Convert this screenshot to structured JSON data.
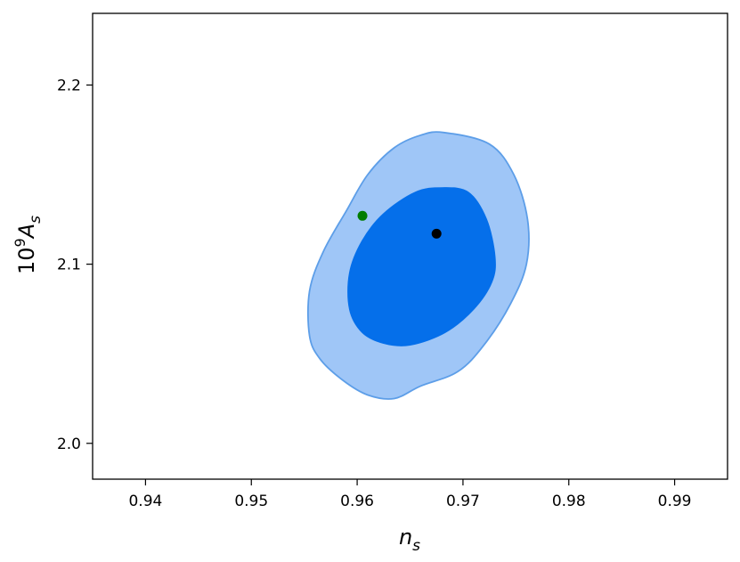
{
  "chart_data": {
    "type": "contour",
    "xlabel": {
      "base": "n",
      "sub": "s"
    },
    "ylabel": {
      "prefix": "10",
      "sup": "9",
      "base": "A",
      "sub": "s"
    },
    "xlim": [
      0.935,
      0.995
    ],
    "ylim": [
      1.98,
      2.24
    ],
    "xticks": [
      0.94,
      0.95,
      0.96,
      0.97,
      0.98,
      0.99
    ],
    "xtick_labels": [
      "0.94",
      "0.95",
      "0.96",
      "0.97",
      "0.98",
      "0.99"
    ],
    "yticks": [
      2.0,
      2.1,
      2.2
    ],
    "ytick_labels": [
      "2.0",
      "2.1",
      "2.2"
    ],
    "grid": false,
    "contours": [
      {
        "level": "outer",
        "fill": "#9fc6f7",
        "stroke": "#5d9ee8",
        "points": [
          [
            0.9682,
            2.1735
          ],
          [
            0.9725,
            2.167
          ],
          [
            0.9748,
            2.15
          ],
          [
            0.9761,
            2.125
          ],
          [
            0.976,
            2.1
          ],
          [
            0.9745,
            2.078
          ],
          [
            0.972,
            2.055
          ],
          [
            0.9695,
            2.04
          ],
          [
            0.966,
            2.032
          ],
          [
            0.9635,
            2.025
          ],
          [
            0.961,
            2.027
          ],
          [
            0.9587,
            2.035
          ],
          [
            0.9565,
            2.047
          ],
          [
            0.9555,
            2.06
          ],
          [
            0.9555,
            2.085
          ],
          [
            0.9568,
            2.107
          ],
          [
            0.959,
            2.13
          ],
          [
            0.961,
            2.15
          ],
          [
            0.9635,
            2.165
          ],
          [
            0.966,
            2.172
          ]
        ]
      },
      {
        "level": "inner",
        "fill": "#056fea",
        "stroke": "#056fea",
        "points": [
          [
            0.968,
            2.1425
          ],
          [
            0.9705,
            2.14
          ],
          [
            0.9722,
            2.125
          ],
          [
            0.973,
            2.104
          ],
          [
            0.9727,
            2.09
          ],
          [
            0.971,
            2.075
          ],
          [
            0.9683,
            2.062
          ],
          [
            0.965,
            2.055
          ],
          [
            0.9625,
            2.056
          ],
          [
            0.9605,
            2.062
          ],
          [
            0.9593,
            2.075
          ],
          [
            0.9593,
            2.095
          ],
          [
            0.9605,
            2.113
          ],
          [
            0.9625,
            2.128
          ],
          [
            0.9655,
            2.14
          ]
        ]
      }
    ],
    "points": [
      {
        "x": 0.9675,
        "y": 2.117,
        "color": "#000000"
      },
      {
        "x": 0.9605,
        "y": 2.127,
        "color": "#007d00"
      }
    ]
  }
}
